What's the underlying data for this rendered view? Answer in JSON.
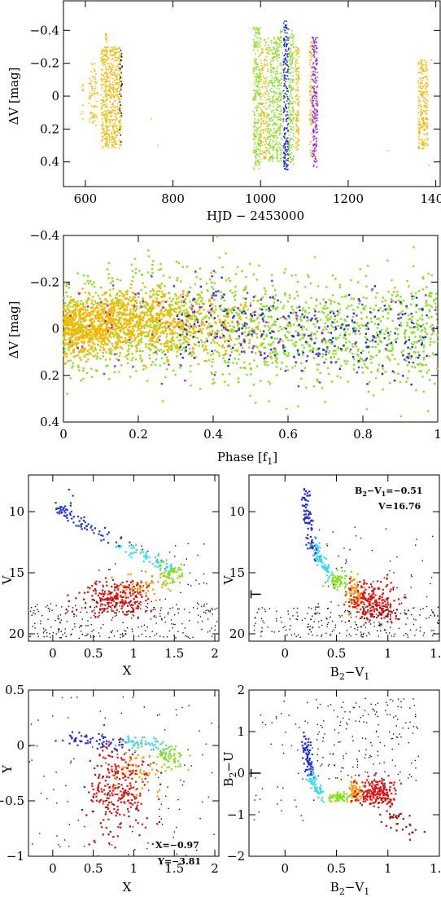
{
  "chart_data": [
    {
      "id": "lc",
      "type": "scatter",
      "xlabel": "HJD − 2453000",
      "ylabel": "ΔV [mag]",
      "xlim": [
        550,
        1410
      ],
      "ylim": [
        0.55,
        -0.58
      ],
      "xticks": [
        600,
        800,
        1000,
        1200,
        1400
      ],
      "yticks": [
        -0.4,
        -0.2,
        0,
        0.2,
        0.4
      ],
      "xtick_labels": [
        "600",
        "800",
        "1000",
        "1200",
        "1400"
      ],
      "ytick_labels": [
        "−0.4",
        "−0.2",
        "0",
        "0.2",
        "0.4"
      ],
      "clusters": [
        {
          "x": [
            590,
            596
          ],
          "y": [
            -0.12,
            0.14
          ],
          "color": "#f5b800",
          "n": 8
        },
        {
          "x": [
            608,
            628
          ],
          "y": [
            -0.2,
            0.18
          ],
          "color": "#f5b800",
          "n": 70
        },
        {
          "x": [
            636,
            682
          ],
          "y": [
            -0.3,
            0.32
          ],
          "color": "#f5b800",
          "n": 520
        },
        {
          "x": [
            646,
            650
          ],
          "y": [
            -0.39,
            0.3
          ],
          "color": "#f5b800",
          "n": 60
        },
        {
          "x": [
            678,
            684
          ],
          "y": [
            -0.28,
            0.3
          ],
          "color": "#111111",
          "n": 30
        },
        {
          "x": [
            983,
            1000
          ],
          "y": [
            -0.42,
            0.45
          ],
          "color": "#86e01e",
          "n": 260
        },
        {
          "x": [
            1000,
            1016
          ],
          "y": [
            -0.35,
            0.38
          ],
          "color": "#f5b800",
          "n": 160
        },
        {
          "x": [
            1016,
            1040
          ],
          "y": [
            -0.36,
            0.4
          ],
          "color": "#86e01e",
          "n": 280
        },
        {
          "x": [
            1040,
            1050
          ],
          "y": [
            -0.4,
            0.4
          ],
          "color": "#86e01e",
          "n": 120
        },
        {
          "x": [
            1052,
            1064
          ],
          "y": [
            -0.46,
            0.45
          ],
          "color": "#2030d0",
          "n": 240
        },
        {
          "x": [
            1064,
            1076
          ],
          "y": [
            -0.4,
            0.42
          ],
          "color": "#86e01e",
          "n": 180
        },
        {
          "x": [
            1080,
            1088
          ],
          "y": [
            -0.3,
            0.33
          ],
          "color": "#f5b800",
          "n": 120
        },
        {
          "x": [
            1112,
            1118
          ],
          "y": [
            -0.36,
            0.36
          ],
          "color": "#f5b800",
          "n": 80
        },
        {
          "x": [
            1118,
            1130
          ],
          "y": [
            -0.36,
            0.44
          ],
          "color": "#a020e0",
          "n": 200
        },
        {
          "x": [
            1360,
            1382
          ],
          "y": [
            -0.22,
            0.32
          ],
          "color": "#f5b800",
          "n": 220
        }
      ]
    },
    {
      "id": "phase",
      "type": "scatter",
      "xlabel": "Phase [f1]",
      "ylabel": "ΔV [mag]",
      "xlim": [
        0,
        1
      ],
      "ylim": [
        0.4,
        -0.4
      ],
      "xticks": [
        0,
        0.2,
        0.4,
        0.6,
        0.8,
        1
      ],
      "yticks": [
        -0.4,
        -0.2,
        0,
        0.2,
        0.4
      ],
      "xtick_labels": [
        "0",
        "0.2",
        "0.4",
        "0.6",
        "0.8",
        "1"
      ],
      "ytick_labels": [
        "−0.4",
        "−0.2",
        "0",
        "0.2",
        "0.4"
      ],
      "groups": [
        {
          "color": "#86e01e",
          "n": 1500,
          "spread": 0.2
        },
        {
          "color": "#f5b800",
          "n": 1300,
          "spread": 0.11
        },
        {
          "color": "#2030d0",
          "n": 260,
          "spread": 0.15
        },
        {
          "color": "#a020e0",
          "n": 140,
          "spread": 0.18
        }
      ]
    },
    {
      "id": "cmd-x",
      "type": "scatter",
      "xlabel": "X",
      "ylabel": "V",
      "xlim": [
        -0.3,
        2.05
      ],
      "ylim": [
        20.6,
        7
      ],
      "xticks": [
        0,
        0.5,
        1,
        1.5,
        2
      ],
      "yticks": [
        10,
        15,
        20
      ],
      "xtick_labels": [
        "0",
        "0.5",
        "1",
        "1.5",
        "2"
      ],
      "ytick_labels": [
        "10",
        "15",
        "20"
      ]
    },
    {
      "id": "cmd-bv",
      "type": "scatter",
      "xlabel": "B2−V1",
      "ylabel": "V",
      "xlim": [
        -0.35,
        1.5
      ],
      "ylim": [
        20.6,
        7
      ],
      "xticks": [
        0,
        0.5,
        1,
        1.5
      ],
      "yticks": [
        10,
        15,
        20
      ],
      "xtick_labels": [
        "0",
        "0.5",
        "1",
        "1.5"
      ],
      "ytick_labels": [
        "10",
        "15",
        "20"
      ],
      "annotations": [
        "B2−V1=−0.51",
        "V=16.76"
      ]
    },
    {
      "id": "xy",
      "type": "scatter",
      "xlabel": "X",
      "ylabel": "Y",
      "xlim": [
        -0.3,
        2.05
      ],
      "ylim": [
        -1,
        0.5
      ],
      "xticks": [
        0,
        0.5,
        1,
        1.5,
        2
      ],
      "yticks": [
        -1,
        -0.5,
        0,
        0.5
      ],
      "xtick_labels": [
        "0",
        "0.5",
        "1",
        "1.5",
        "2"
      ],
      "ytick_labels": [
        "−1",
        "−0.5",
        "0",
        "0.5"
      ],
      "annotations": [
        "X=−0.97",
        "Y=−3.81"
      ]
    },
    {
      "id": "ccd",
      "type": "scatter",
      "xlabel": "B2−V1",
      "ylabel": "B2−U",
      "xlim": [
        -0.35,
        1.5
      ],
      "ylim": [
        -2,
        2
      ],
      "xticks": [
        0,
        0.5,
        1,
        1.5
      ],
      "yticks": [
        -2,
        -1,
        0,
        1,
        2
      ],
      "xtick_labels": [
        "0",
        "0.5",
        "1",
        "1.5"
      ],
      "ytick_labels": [
        "−2",
        "−1",
        "0",
        "1",
        "2"
      ]
    }
  ],
  "colors": {
    "blue": "#2030d0",
    "cyan": "#30d8f0",
    "green": "#86e01e",
    "orange": "#f59a10",
    "red": "#e01010",
    "darkred": "#a01010",
    "black": "#111111",
    "yellow": "#f5b800",
    "purple": "#a020e0"
  },
  "labels": {
    "lc_x": "HJD  −  2453000",
    "lc_y": "ΔV [mag]",
    "ph_x_main": "Phase [f",
    "ph_x_sub": "1",
    "ph_x_end": "]",
    "ph_y": "ΔV [mag]",
    "cmdx_x": "X",
    "cmdx_y": "V",
    "cmdbv_x_b": "B",
    "cmdbv_x_sub1": "2",
    "cmdbv_x_mid": "−V",
    "cmdbv_x_sub2": "1",
    "cmdbv_y": "V",
    "xy_x": "X",
    "xy_y": "Y",
    "ccd_x_b": "B",
    "ccd_x_sub1": "2",
    "ccd_x_mid": "−V",
    "ccd_x_sub2": "1",
    "ccd_y_b": "B",
    "ccd_y_sub": "2",
    "ccd_y_end": "−U",
    "ann_bv_b": "B",
    "ann_bv_sub1": "2",
    "ann_bv_mid": "−V",
    "ann_bv_sub2": "1",
    "ann_bv_val": "=−0.51",
    "ann_v": "V=16.76",
    "ann_x": "X=−0.97",
    "ann_y": "Y=−3.81"
  }
}
